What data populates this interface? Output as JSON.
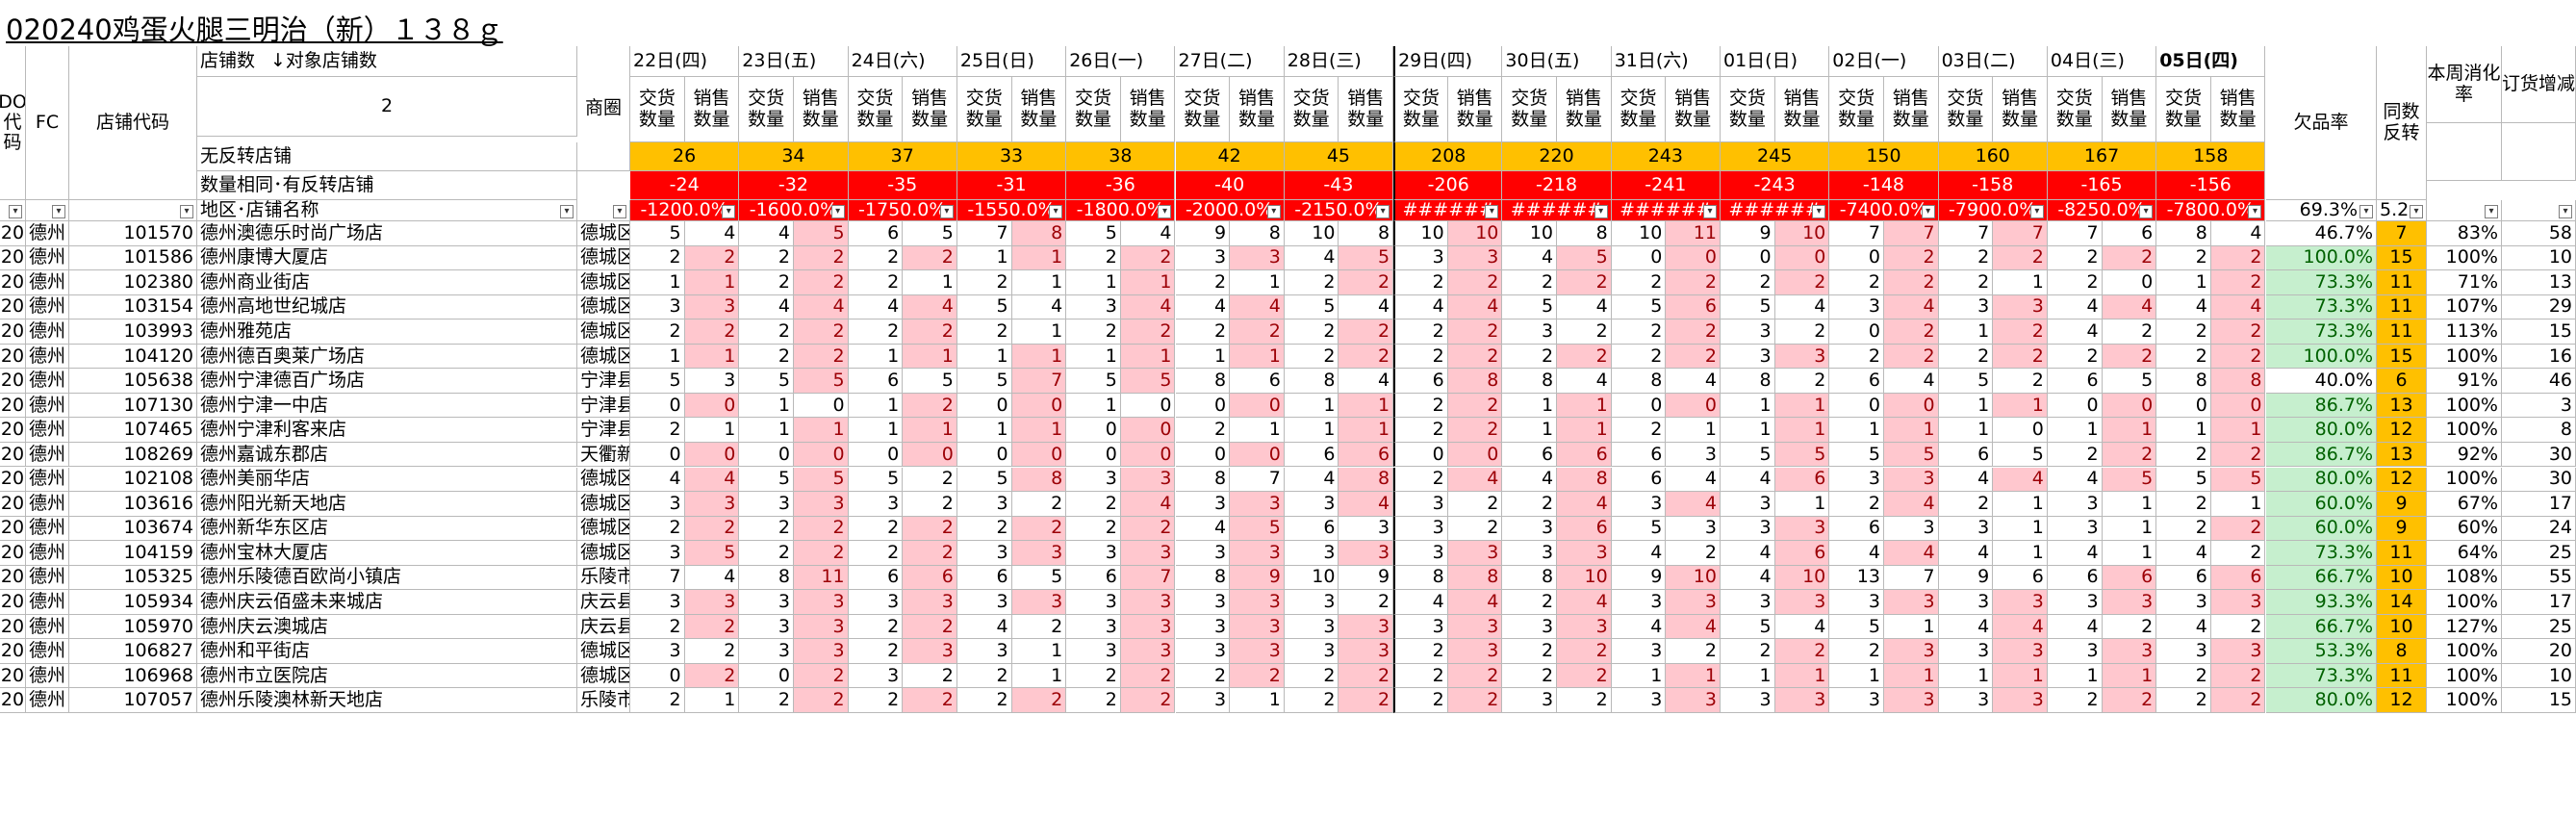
{
  "title": "020240鸡蛋火腿三明治（新）１３８ｇ",
  "header": {
    "do_code": "DO代码",
    "fc": "FC",
    "store_code": "店铺代码",
    "store_count_label": "店铺数",
    "target_store_count_label": "↓对象店铺数",
    "target_store_count": "2",
    "no_turnover_label": "无反转店铺",
    "same_qty_label": "数量相同･有反转店铺",
    "region_label": "地区･店铺名称",
    "circle_label": "商圈",
    "sub_deliver": "交货数量",
    "sub_sales": "销售数量",
    "stockout_label": "欠品率",
    "same_turn_label": "同数反转",
    "consumption_label": "本周消化率",
    "order_change_label": "订货增减",
    "stockout_summary": "69.3%",
    "same_turn_summary": "5.2"
  },
  "days": [
    "22日(四)",
    "23日(五)",
    "24日(六)",
    "25日(日)",
    "26日(一)",
    "27日(二)",
    "28日(三)",
    "29日(四)",
    "30日(五)",
    "31日(六)",
    "01日(日)",
    "02日(一)",
    "03日(二)",
    "04日(三)",
    "05日(四)"
  ],
  "no_turnover_counts": [
    "26",
    "34",
    "37",
    "33",
    "38",
    "42",
    "45",
    "208",
    "220",
    "243",
    "245",
    "150",
    "160",
    "167",
    "158"
  ],
  "same_qty_counts": [
    "-24",
    "-32",
    "-35",
    "-31",
    "-36",
    "-40",
    "-43",
    "-206",
    "-218",
    "-241",
    "-243",
    "-148",
    "-158",
    "-165",
    "-156"
  ],
  "day_summaries": [
    "-1200.0%",
    "-1600.0%",
    "-1750.0%",
    "-1550.0%",
    "-1800.0%",
    "-2000.0%",
    "-2150.0%",
    "######",
    "######",
    "######",
    "######",
    "-7400.0%",
    "-7900.0%",
    "-8250.0%",
    "-7800.0%"
  ],
  "rows": [
    {
      "do": "20",
      "fc": "德州",
      "code": "101570",
      "name": "德州澳德乐时尚广场店",
      "circle": "德城区",
      "vals": [
        "5",
        "4",
        "4",
        "5",
        "6",
        "5",
        "7",
        "8",
        "5",
        "4",
        "9",
        "8",
        "10",
        "8",
        "10",
        "10",
        "10",
        "8",
        "10",
        "11",
        "9",
        "10",
        "7",
        "7",
        "7",
        "7",
        "7",
        "6",
        "8",
        "4"
      ],
      "stockout": "46.7%",
      "turn": "7",
      "cons": "83%",
      "order": "58"
    },
    {
      "do": "20",
      "fc": "德州",
      "code": "101586",
      "name": "德州康博大厦店",
      "circle": "德城区",
      "vals": [
        "2",
        "2",
        "2",
        "2",
        "2",
        "2",
        "1",
        "1",
        "2",
        "2",
        "3",
        "3",
        "4",
        "5",
        "3",
        "3",
        "4",
        "5",
        "0",
        "0",
        "0",
        "0",
        "0",
        "2",
        "2",
        "2",
        "2",
        "2",
        "2",
        "2"
      ],
      "stockout": "100.0%",
      "turn": "15",
      "cons": "100%",
      "order": "10"
    },
    {
      "do": "20",
      "fc": "德州",
      "code": "102380",
      "name": "德州商业街店",
      "circle": "德城区",
      "vals": [
        "1",
        "1",
        "2",
        "2",
        "2",
        "1",
        "2",
        "1",
        "1",
        "1",
        "2",
        "1",
        "2",
        "2",
        "2",
        "2",
        "2",
        "2",
        "2",
        "2",
        "2",
        "2",
        "2",
        "2",
        "2",
        "1",
        "2",
        "0",
        "1",
        "2"
      ],
      "stockout": "73.3%",
      "turn": "11",
      "cons": "71%",
      "order": "13"
    },
    {
      "do": "20",
      "fc": "德州",
      "code": "103154",
      "name": "德州高地世纪城店",
      "circle": "德城区",
      "vals": [
        "3",
        "3",
        "4",
        "4",
        "4",
        "4",
        "5",
        "4",
        "3",
        "4",
        "4",
        "4",
        "5",
        "4",
        "4",
        "4",
        "5",
        "4",
        "5",
        "6",
        "5",
        "4",
        "3",
        "4",
        "3",
        "3",
        "4",
        "4",
        "4",
        "4"
      ],
      "stockout": "73.3%",
      "turn": "11",
      "cons": "107%",
      "order": "29"
    },
    {
      "do": "20",
      "fc": "德州",
      "code": "103993",
      "name": "德州雅苑店",
      "circle": "德城区",
      "vals": [
        "2",
        "2",
        "2",
        "2",
        "2",
        "2",
        "2",
        "1",
        "2",
        "2",
        "2",
        "2",
        "2",
        "2",
        "2",
        "2",
        "3",
        "2",
        "2",
        "2",
        "3",
        "2",
        "0",
        "2",
        "1",
        "2",
        "4",
        "2",
        "2",
        "2"
      ],
      "stockout": "73.3%",
      "turn": "11",
      "cons": "113%",
      "order": "15"
    },
    {
      "do": "20",
      "fc": "德州",
      "code": "104120",
      "name": "德州德百奥莱广场店",
      "circle": "德城区",
      "vals": [
        "1",
        "1",
        "2",
        "2",
        "1",
        "1",
        "1",
        "1",
        "1",
        "1",
        "1",
        "1",
        "2",
        "2",
        "2",
        "2",
        "2",
        "2",
        "2",
        "2",
        "3",
        "3",
        "2",
        "2",
        "2",
        "2",
        "2",
        "2",
        "2",
        "2"
      ],
      "stockout": "100.0%",
      "turn": "15",
      "cons": "100%",
      "order": "16"
    },
    {
      "do": "20",
      "fc": "德州",
      "code": "105638",
      "name": "德州宁津德百广场店",
      "circle": "宁津县",
      "vals": [
        "5",
        "3",
        "5",
        "5",
        "6",
        "5",
        "5",
        "7",
        "5",
        "5",
        "8",
        "6",
        "8",
        "4",
        "6",
        "8",
        "8",
        "4",
        "8",
        "4",
        "8",
        "2",
        "6",
        "4",
        "5",
        "2",
        "6",
        "5",
        "8",
        "8"
      ],
      "stockout": "40.0%",
      "turn": "6",
      "cons": "91%",
      "order": "46"
    },
    {
      "do": "20",
      "fc": "德州",
      "code": "107130",
      "name": "德州宁津一中店",
      "circle": "宁津县",
      "vals": [
        "0",
        "0",
        "1",
        "0",
        "1",
        "2",
        "0",
        "0",
        "1",
        "0",
        "0",
        "0",
        "1",
        "1",
        "2",
        "2",
        "1",
        "1",
        "0",
        "0",
        "1",
        "1",
        "0",
        "0",
        "1",
        "1",
        "0",
        "0",
        "0",
        "0"
      ],
      "stockout": "86.7%",
      "turn": "13",
      "cons": "100%",
      "order": "3"
    },
    {
      "do": "20",
      "fc": "德州",
      "code": "107465",
      "name": "德州宁津利客来店",
      "circle": "宁津县",
      "vals": [
        "2",
        "1",
        "1",
        "1",
        "1",
        "1",
        "1",
        "1",
        "0",
        "0",
        "2",
        "1",
        "1",
        "1",
        "2",
        "2",
        "1",
        "1",
        "2",
        "1",
        "1",
        "1",
        "1",
        "1",
        "1",
        "0",
        "1",
        "1",
        "1",
        "1"
      ],
      "stockout": "80.0%",
      "turn": "12",
      "cons": "100%",
      "order": "8"
    },
    {
      "do": "20",
      "fc": "德州",
      "code": "108269",
      "name": "德州嘉诚东郡店",
      "circle": "天衢新",
      "vals": [
        "0",
        "0",
        "0",
        "0",
        "0",
        "0",
        "0",
        "0",
        "0",
        "0",
        "0",
        "0",
        "6",
        "6",
        "0",
        "0",
        "6",
        "6",
        "6",
        "3",
        "5",
        "5",
        "5",
        "5",
        "6",
        "5",
        "2",
        "2",
        "2",
        "2"
      ],
      "stockout": "86.7%",
      "turn": "13",
      "cons": "92%",
      "order": "30"
    },
    {
      "do": "20",
      "fc": "德州",
      "code": "102108",
      "name": "德州美丽华店",
      "circle": "德城区",
      "vals": [
        "4",
        "4",
        "5",
        "5",
        "5",
        "2",
        "5",
        "8",
        "3",
        "3",
        "8",
        "7",
        "4",
        "8",
        "2",
        "4",
        "4",
        "8",
        "6",
        "4",
        "4",
        "6",
        "3",
        "3",
        "4",
        "4",
        "4",
        "5",
        "5",
        "5"
      ],
      "stockout": "80.0%",
      "turn": "12",
      "cons": "100%",
      "order": "30"
    },
    {
      "do": "20",
      "fc": "德州",
      "code": "103616",
      "name": "德州阳光新天地店",
      "circle": "德城区",
      "vals": [
        "3",
        "3",
        "3",
        "3",
        "3",
        "2",
        "3",
        "2",
        "2",
        "4",
        "3",
        "3",
        "3",
        "4",
        "3",
        "2",
        "2",
        "4",
        "3",
        "4",
        "3",
        "1",
        "2",
        "4",
        "2",
        "1",
        "3",
        "1",
        "2",
        "1"
      ],
      "stockout": "60.0%",
      "turn": "9",
      "cons": "67%",
      "order": "17"
    },
    {
      "do": "20",
      "fc": "德州",
      "code": "103674",
      "name": "德州新华东区店",
      "circle": "德城区",
      "vals": [
        "2",
        "2",
        "2",
        "2",
        "2",
        "2",
        "2",
        "2",
        "2",
        "2",
        "4",
        "5",
        "6",
        "3",
        "3",
        "2",
        "3",
        "6",
        "5",
        "3",
        "3",
        "3",
        "6",
        "3",
        "3",
        "1",
        "3",
        "1",
        "2",
        "2"
      ],
      "stockout": "60.0%",
      "turn": "9",
      "cons": "60%",
      "order": "24"
    },
    {
      "do": "20",
      "fc": "德州",
      "code": "104159",
      "name": "德州宝林大厦店",
      "circle": "德城区",
      "vals": [
        "3",
        "5",
        "2",
        "2",
        "2",
        "2",
        "3",
        "3",
        "3",
        "3",
        "3",
        "3",
        "3",
        "3",
        "3",
        "3",
        "3",
        "3",
        "4",
        "2",
        "4",
        "6",
        "4",
        "4",
        "4",
        "1",
        "4",
        "1",
        "4",
        "2"
      ],
      "stockout": "73.3%",
      "turn": "11",
      "cons": "64%",
      "order": "25"
    },
    {
      "do": "20",
      "fc": "德州",
      "code": "105325",
      "name": "德州乐陵德百欧尚小镇店",
      "circle": "乐陵市",
      "vals": [
        "7",
        "4",
        "8",
        "11",
        "6",
        "6",
        "6",
        "5",
        "6",
        "7",
        "8",
        "9",
        "10",
        "9",
        "8",
        "8",
        "8",
        "10",
        "9",
        "10",
        "4",
        "10",
        "13",
        "7",
        "9",
        "6",
        "6",
        "6",
        "6",
        "6"
      ],
      "stockout": "66.7%",
      "turn": "10",
      "cons": "108%",
      "order": "55"
    },
    {
      "do": "20",
      "fc": "德州",
      "code": "105934",
      "name": "德州庆云佰盛未来城店",
      "circle": "庆云县",
      "vals": [
        "3",
        "3",
        "3",
        "3",
        "3",
        "3",
        "3",
        "3",
        "3",
        "3",
        "3",
        "3",
        "3",
        "2",
        "4",
        "4",
        "2",
        "4",
        "3",
        "3",
        "3",
        "3",
        "3",
        "3",
        "3",
        "3",
        "3",
        "3",
        "3",
        "3"
      ],
      "stockout": "93.3%",
      "turn": "14",
      "cons": "100%",
      "order": "17"
    },
    {
      "do": "20",
      "fc": "德州",
      "code": "105970",
      "name": "德州庆云澳城店",
      "circle": "庆云县",
      "vals": [
        "2",
        "2",
        "3",
        "3",
        "2",
        "2",
        "4",
        "2",
        "3",
        "3",
        "3",
        "3",
        "3",
        "3",
        "3",
        "3",
        "3",
        "3",
        "4",
        "4",
        "5",
        "4",
        "5",
        "1",
        "4",
        "4",
        "4",
        "2",
        "4",
        "2"
      ],
      "stockout": "66.7%",
      "turn": "10",
      "cons": "127%",
      "order": "25"
    },
    {
      "do": "20",
      "fc": "德州",
      "code": "106827",
      "name": "德州和平街店",
      "circle": "德城区",
      "vals": [
        "3",
        "2",
        "3",
        "3",
        "2",
        "3",
        "3",
        "1",
        "3",
        "3",
        "3",
        "3",
        "3",
        "3",
        "2",
        "3",
        "2",
        "2",
        "3",
        "2",
        "2",
        "2",
        "2",
        "3",
        "3",
        "3",
        "3",
        "3",
        "3",
        "3"
      ],
      "stockout": "53.3%",
      "turn": "8",
      "cons": "100%",
      "order": "20"
    },
    {
      "do": "20",
      "fc": "德州",
      "code": "106968",
      "name": "德州市立医院店",
      "circle": "德城区",
      "vals": [
        "0",
        "2",
        "0",
        "2",
        "3",
        "2",
        "2",
        "1",
        "2",
        "2",
        "2",
        "2",
        "2",
        "2",
        "2",
        "2",
        "2",
        "2",
        "1",
        "1",
        "1",
        "1",
        "1",
        "1",
        "1",
        "1",
        "1",
        "1",
        "2",
        "2"
      ],
      "stockout": "73.3%",
      "turn": "11",
      "cons": "100%",
      "order": "10"
    },
    {
      "do": "20",
      "fc": "德州",
      "code": "107057",
      "name": "德州乐陵澳林新天地店",
      "circle": "乐陵市",
      "vals": [
        "2",
        "1",
        "2",
        "2",
        "2",
        "2",
        "2",
        "2",
        "2",
        "2",
        "3",
        "1",
        "2",
        "2",
        "2",
        "2",
        "3",
        "2",
        "3",
        "3",
        "3",
        "3",
        "3",
        "3",
        "3",
        "3",
        "2",
        "2",
        "2",
        "2"
      ],
      "stockout": "80.0%",
      "turn": "12",
      "cons": "100%",
      "order": "15"
    }
  ],
  "colors": {
    "yellow": "#ffc000",
    "red": "#ff0000",
    "pink_fill": "#ffc7ce",
    "pink_text": "#9c0006",
    "green_fill": "#c6efce",
    "green_text": "#006100",
    "grid": "#b9b9b9"
  }
}
